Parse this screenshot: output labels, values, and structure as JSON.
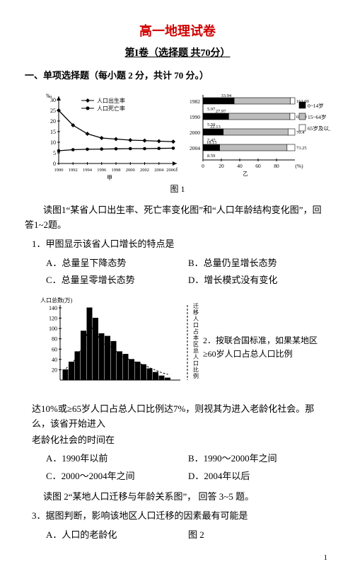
{
  "title": "高一地理试卷",
  "subtitle": "第I卷（选择题  共70分）",
  "section1": "一、单项选择题（每小题 2 分，共计 70 分。）",
  "fig1": {
    "left_chart": {
      "legend1": "人口出生率",
      "legend2": "人口死亡率",
      "xticks": [
        "1990",
        "1992",
        "1994",
        "1996",
        "1998",
        "2000",
        "2002",
        "2004",
        "2006年"
      ],
      "yticks": [
        "0",
        "5",
        "10",
        "15",
        "20",
        "25",
        "30"
      ],
      "ylabel": "‰",
      "xlabel": "甲",
      "birth": [
        25,
        18,
        14,
        12,
        11.5,
        11,
        10.8,
        10.5,
        10.3
      ],
      "death": [
        6,
        6.5,
        6.7,
        6.8,
        6.9,
        7,
        7,
        7.1,
        7.2
      ]
    },
    "right_chart": {
      "years": [
        "1982",
        "1990",
        "2000",
        "2004"
      ],
      "rowvals": [
        {
          "a": "33.94",
          "b": "161.00"
        },
        {
          "a": "5.97",
          "b": ""
        },
        {
          "a": "27.97",
          "b": "66.60"
        },
        {
          "a": "5.59",
          "b": ""
        },
        {
          "a": "22.13",
          "b": "70.4"
        },
        {
          "a": "7.47",
          "b": ""
        },
        {
          "a": "18.15",
          "b": "73.25"
        },
        {
          "a": "8.59",
          "b": ""
        }
      ],
      "xticks": [
        "0",
        "20",
        "40",
        "60",
        "80",
        "(%)"
      ],
      "xlabel": "乙",
      "legend": [
        "0~14岁",
        "15~64岁",
        "65岁及以上"
      ],
      "seg_colors": [
        "#000000",
        "#bdbdbd",
        "#ffffff"
      ]
    },
    "caption": "图 1"
  },
  "para1": "读图1“某省人口出生率、死亡率变化图”和“人口年龄结构变化图”，回答1~2题。",
  "q1": {
    "stem": "1．甲图显示该省人口增长的特点是",
    "A": "A．总量呈下降态势",
    "B": "B．总量仍呈增长态势",
    "C": "C．总量呈零增长态势",
    "D": "D．增长模式没有变化"
  },
  "fig2": {
    "xlabel": "人口总数(万)",
    "yticks": [
      "20",
      "40",
      "60",
      "80",
      "100",
      "120",
      "140"
    ],
    "bars": [
      20,
      35,
      55,
      95,
      140,
      120,
      90,
      85,
      75,
      55,
      50,
      40,
      35,
      30,
      22,
      15,
      8,
      4
    ],
    "annot": "乙",
    "right_label": "迁移人口占本区总人口比例",
    "caption_inline": "2．按联合国标准，如果某地区≥60岁人口占总人口比例"
  },
  "para2a": "达10%或≥65岁人口占总人口比例达7%，则视其为进入老龄化社会。那么，该省开始进入",
  "para2b": "老龄化社会的时间在",
  "q2": {
    "A": "A．1990年以前",
    "B": "B．1990～2000年之间",
    "C": "C．2000～2004年之间",
    "D": "D．2004年以后"
  },
  "para3": "读图 2“某地人口迁移与年龄关系图”， 回答 3~5 题。",
  "q3": {
    "stem": "3．据图判断，影响该地区人口迁移的因素最有可能是",
    "A": "A．人口的老龄化",
    "fig_cap": "图 2"
  },
  "page_num": "1"
}
